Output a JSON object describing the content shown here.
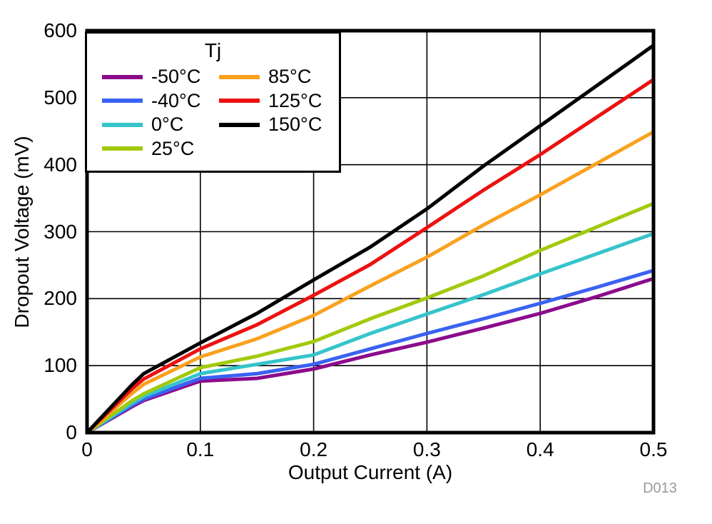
{
  "watermark": "D013",
  "chart_data": {
    "type": "line",
    "title": "",
    "xlabel": "Output Current (A)",
    "ylabel": "Dropout Voltage (mV)",
    "xlim": [
      0,
      0.5
    ],
    "ylim": [
      0,
      600
    ],
    "grid": true,
    "grid_color": "#000000",
    "frame_color": "#000000",
    "legend_title": "Tj",
    "legend_position": "top-left",
    "x_ticks": [
      0,
      0.1,
      0.2,
      0.3,
      0.4,
      0.5
    ],
    "x_tick_labels": [
      "0",
      "0.1",
      "0.2",
      "0.3",
      "0.4",
      "0.5"
    ],
    "y_ticks": [
      0,
      100,
      200,
      300,
      400,
      500,
      600
    ],
    "y_tick_labels": [
      "0",
      "100",
      "200",
      "300",
      "400",
      "500",
      "600"
    ],
    "x": [
      0,
      0.04,
      0.05,
      0.1,
      0.15,
      0.2,
      0.25,
      0.3,
      0.35,
      0.4,
      0.45,
      0.5
    ],
    "series": [
      {
        "name": "-50°C",
        "color": "#8B0B8C",
        "values": [
          0,
          39,
          48,
          77,
          81,
          95,
          116,
          135,
          156,
          178,
          203,
          230
        ]
      },
      {
        "name": "-40°C",
        "color": "#3A62F2",
        "values": [
          0,
          41,
          50,
          81,
          88,
          102,
          125,
          148,
          170,
          193,
          217,
          242
        ]
      },
      {
        "name": "0°C",
        "color": "#35C4CB",
        "values": [
          0,
          44,
          54,
          88,
          102,
          116,
          148,
          177,
          206,
          237,
          267,
          297
        ]
      },
      {
        "name": "25°C",
        "color": "#A1CA0C",
        "values": [
          0,
          48,
          58,
          97,
          114,
          136,
          170,
          201,
          234,
          272,
          307,
          342
        ]
      },
      {
        "name": "85°C",
        "color": "#F9A11F",
        "values": [
          0,
          59,
          72,
          113,
          140,
          175,
          219,
          262,
          310,
          355,
          402,
          449
        ]
      },
      {
        "name": "125°C",
        "color": "#EC1111",
        "values": [
          0,
          66,
          80,
          125,
          161,
          205,
          251,
          306,
          362,
          415,
          471,
          527
        ]
      },
      {
        "name": "150°C",
        "color": "#000000",
        "values": [
          0,
          72,
          88,
          134,
          178,
          228,
          277,
          334,
          398,
          458,
          518,
          578
        ]
      }
    ]
  }
}
